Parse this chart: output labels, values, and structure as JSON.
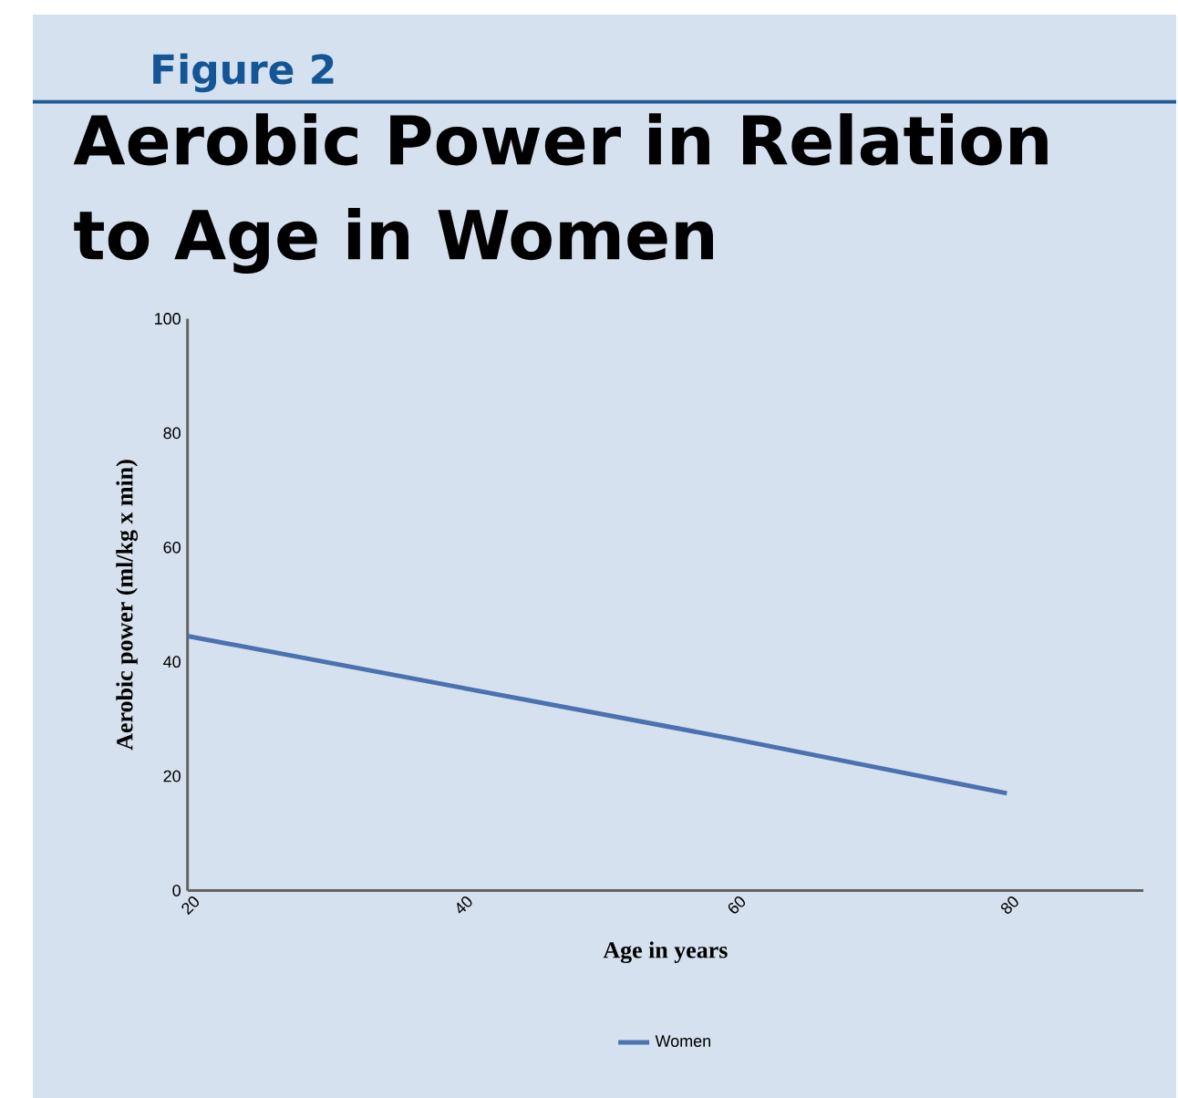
{
  "chart_data": {
    "type": "line",
    "title": "Aerobic Power in Relation to Age in Women",
    "annotations": [
      "Figure 2"
    ],
    "xlabel": "Age in years",
    "ylabel": "Aerobic power (ml/kg x min)",
    "x": [
      20,
      40,
      60,
      80
    ],
    "series": [
      {
        "name": "Women",
        "color": "#4a72b0",
        "values": [
          44.5,
          35.5,
          26.5,
          17
        ]
      }
    ],
    "xlim": [
      20,
      90
    ],
    "xticks": [
      20,
      40,
      60,
      80
    ],
    "ylim": [
      0,
      100
    ],
    "yticks": [
      0,
      20,
      40,
      60,
      80,
      100
    ],
    "legend": "bottom",
    "grid": false,
    "marker": "none",
    "line_style": "solid"
  }
}
